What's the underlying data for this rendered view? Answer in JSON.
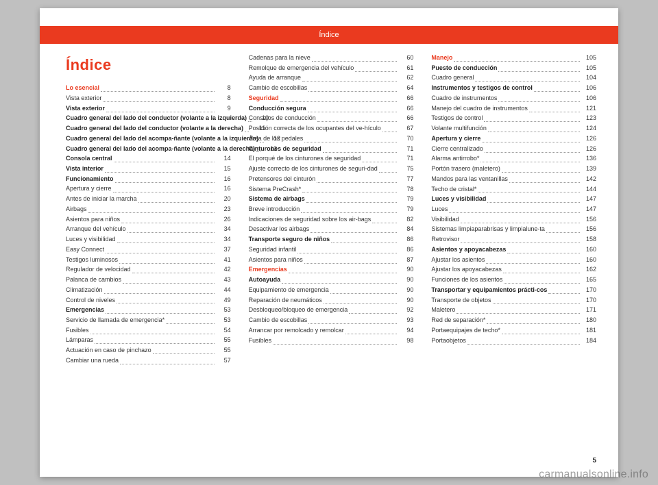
{
  "header": "Índice",
  "title": "Índice",
  "page_number": "5",
  "watermark": "carmanualsonline.info",
  "colors": {
    "accent": "#ea3a1f",
    "page_bg": "#ffffff",
    "body_bg": "#c0c0c0",
    "text": "#333333",
    "dots": "#999999"
  },
  "columns": [
    [
      {
        "label": "Lo esencial",
        "page": "8",
        "style": "red"
      },
      {
        "label": "Vista exterior",
        "page": "8",
        "style": "plain"
      },
      {
        "label": "Vista exterior",
        "page": "9",
        "style": "bold"
      },
      {
        "label": "Cuadro general del lado del conductor (volante a la izquierda)",
        "page": "10",
        "style": "bold"
      },
      {
        "label": "Cuadro general del lado del conductor (volante a la derecha)",
        "page": "11",
        "style": "bold"
      },
      {
        "label": "Cuadro general del lado del acompa-ñante (volante a la izquierda)",
        "page": "12",
        "style": "bold"
      },
      {
        "label": "Cuadro general del lado del acompa-ñante (volante a la derecha)",
        "page": "13",
        "style": "bold"
      },
      {
        "label": "Consola central",
        "page": "14",
        "style": "bold"
      },
      {
        "label": "Vista interior",
        "page": "15",
        "style": "bold"
      },
      {
        "label": "Funcionamiento",
        "page": "16",
        "style": "bold"
      },
      {
        "label": "Apertura y cierre",
        "page": "16",
        "style": "plain"
      },
      {
        "label": "Antes de iniciar la marcha",
        "page": "20",
        "style": "plain"
      },
      {
        "label": "Airbags",
        "page": "23",
        "style": "plain"
      },
      {
        "label": "Asientos para niños",
        "page": "26",
        "style": "plain"
      },
      {
        "label": "Arranque del vehículo",
        "page": "34",
        "style": "plain"
      },
      {
        "label": "Luces y visibilidad",
        "page": "34",
        "style": "plain"
      },
      {
        "label": "Easy Connect",
        "page": "37",
        "style": "plain"
      },
      {
        "label": "Testigos luminosos",
        "page": "41",
        "style": "plain"
      },
      {
        "label": "Regulador de velocidad",
        "page": "42",
        "style": "plain"
      },
      {
        "label": "Palanca de cambios",
        "page": "43",
        "style": "plain"
      },
      {
        "label": "Climatización",
        "page": "44",
        "style": "plain"
      },
      {
        "label": "Control de niveles",
        "page": "49",
        "style": "plain"
      },
      {
        "label": "Emergencias",
        "page": "53",
        "style": "bold"
      },
      {
        "label": "Servicio de llamada de emergencia*",
        "page": "53",
        "style": "plain"
      },
      {
        "label": "Fusibles",
        "page": "54",
        "style": "plain"
      },
      {
        "label": "Lámparas",
        "page": "55",
        "style": "plain"
      },
      {
        "label": "Actuación en caso de pinchazo",
        "page": "55",
        "style": "plain"
      },
      {
        "label": "Cambiar una rueda",
        "page": "57",
        "style": "plain"
      }
    ],
    [
      {
        "label": "Cadenas para la nieve",
        "page": "60",
        "style": "plain"
      },
      {
        "label": "Remolque de emergencia del vehículo",
        "page": "61",
        "style": "plain"
      },
      {
        "label": "Ayuda de arranque",
        "page": "62",
        "style": "plain"
      },
      {
        "label": "Cambio de escobillas",
        "page": "64",
        "style": "plain"
      },
      {
        "label": "Seguridad",
        "page": "66",
        "style": "red"
      },
      {
        "label": "Conducción segura",
        "page": "66",
        "style": "bold"
      },
      {
        "label": "Consejos de conducción",
        "page": "66",
        "style": "plain"
      },
      {
        "label": "Posición correcta de los ocupantes del ve-hículo",
        "page": "67",
        "style": "plain"
      },
      {
        "label": "Área de los pedales",
        "page": "70",
        "style": "plain"
      },
      {
        "label": "Cinturones de seguridad",
        "page": "71",
        "style": "bold"
      },
      {
        "label": "El porqué de los cinturones de seguridad",
        "page": "71",
        "style": "plain"
      },
      {
        "label": "Ajuste correcto de los cinturones de seguri-dad",
        "page": "75",
        "style": "plain"
      },
      {
        "label": "Pretensores del cinturón",
        "page": "77",
        "style": "plain"
      },
      {
        "label": "Sistema PreCrash*",
        "page": "78",
        "style": "plain"
      },
      {
        "label": "Sistema de airbags",
        "page": "79",
        "style": "bold"
      },
      {
        "label": "Breve introducción",
        "page": "79",
        "style": "plain"
      },
      {
        "label": "Indicaciones de seguridad sobre los air-bags",
        "page": "82",
        "style": "plain"
      },
      {
        "label": "Desactivar los airbags",
        "page": "84",
        "style": "plain"
      },
      {
        "label": "Transporte seguro de niños",
        "page": "86",
        "style": "bold"
      },
      {
        "label": "Seguridad infantil",
        "page": "86",
        "style": "plain"
      },
      {
        "label": "Asientos para niños",
        "page": "87",
        "style": "plain"
      },
      {
        "label": "Emergencias",
        "page": "90",
        "style": "red"
      },
      {
        "label": "Autoayuda",
        "page": "90",
        "style": "bold"
      },
      {
        "label": "Equipamiento de emergencia",
        "page": "90",
        "style": "plain"
      },
      {
        "label": "Reparación de neumáticos",
        "page": "90",
        "style": "plain"
      },
      {
        "label": "Desbloqueo/bloqueo de emergencia",
        "page": "92",
        "style": "plain"
      },
      {
        "label": "Cambio de escobillas",
        "page": "93",
        "style": "plain"
      },
      {
        "label": "Arrancar por remolcado y remolcar",
        "page": "94",
        "style": "plain"
      },
      {
        "label": "Fusibles",
        "page": "98",
        "style": "plain"
      }
    ],
    [
      {
        "label": "Manejo",
        "page": "105",
        "style": "red"
      },
      {
        "label": "Puesto de conducción",
        "page": "105",
        "style": "bold"
      },
      {
        "label": "Cuadro general",
        "page": "104",
        "style": "plain"
      },
      {
        "label": "Instrumentos y testigos de control",
        "page": "106",
        "style": "bold"
      },
      {
        "label": "Cuadro de instrumentos",
        "page": "106",
        "style": "plain"
      },
      {
        "label": "Manejo del cuadro de instrumentos",
        "page": "121",
        "style": "plain"
      },
      {
        "label": "Testigos de control",
        "page": "123",
        "style": "plain"
      },
      {
        "label": "Volante multifunción",
        "page": "124",
        "style": "plain"
      },
      {
        "label": "Apertura y cierre",
        "page": "126",
        "style": "bold"
      },
      {
        "label": "Cierre centralizado",
        "page": "126",
        "style": "plain"
      },
      {
        "label": "Alarma antirrobo*",
        "page": "136",
        "style": "plain"
      },
      {
        "label": "Portón trasero (maletero)",
        "page": "139",
        "style": "plain"
      },
      {
        "label": "Mandos para las ventanillas",
        "page": "142",
        "style": "plain"
      },
      {
        "label": "Techo de cristal*",
        "page": "144",
        "style": "plain"
      },
      {
        "label": "Luces y visibilidad",
        "page": "147",
        "style": "bold"
      },
      {
        "label": "Luces",
        "page": "147",
        "style": "plain"
      },
      {
        "label": "Visibilidad",
        "page": "156",
        "style": "plain"
      },
      {
        "label": "Sistemas limpiaparabrisas y limpialune-ta",
        "page": "156",
        "style": "plain"
      },
      {
        "label": "Retrovisor",
        "page": "158",
        "style": "plain"
      },
      {
        "label": "Asientos y apoyacabezas",
        "page": "160",
        "style": "bold"
      },
      {
        "label": "Ajustar los asientos",
        "page": "160",
        "style": "plain"
      },
      {
        "label": "Ajustar los apoyacabezas",
        "page": "162",
        "style": "plain"
      },
      {
        "label": "Funciones de los asientos",
        "page": "165",
        "style": "plain"
      },
      {
        "label": "Transportar y equipamientos prácti-cos",
        "page": "170",
        "style": "bold"
      },
      {
        "label": "Transporte de objetos",
        "page": "170",
        "style": "plain"
      },
      {
        "label": "Maletero",
        "page": "171",
        "style": "plain"
      },
      {
        "label": "Red de separación*",
        "page": "180",
        "style": "plain"
      },
      {
        "label": "Portaequipajes de techo*",
        "page": "181",
        "style": "plain"
      },
      {
        "label": "Portaobjetos",
        "page": "184",
        "style": "plain"
      }
    ]
  ]
}
